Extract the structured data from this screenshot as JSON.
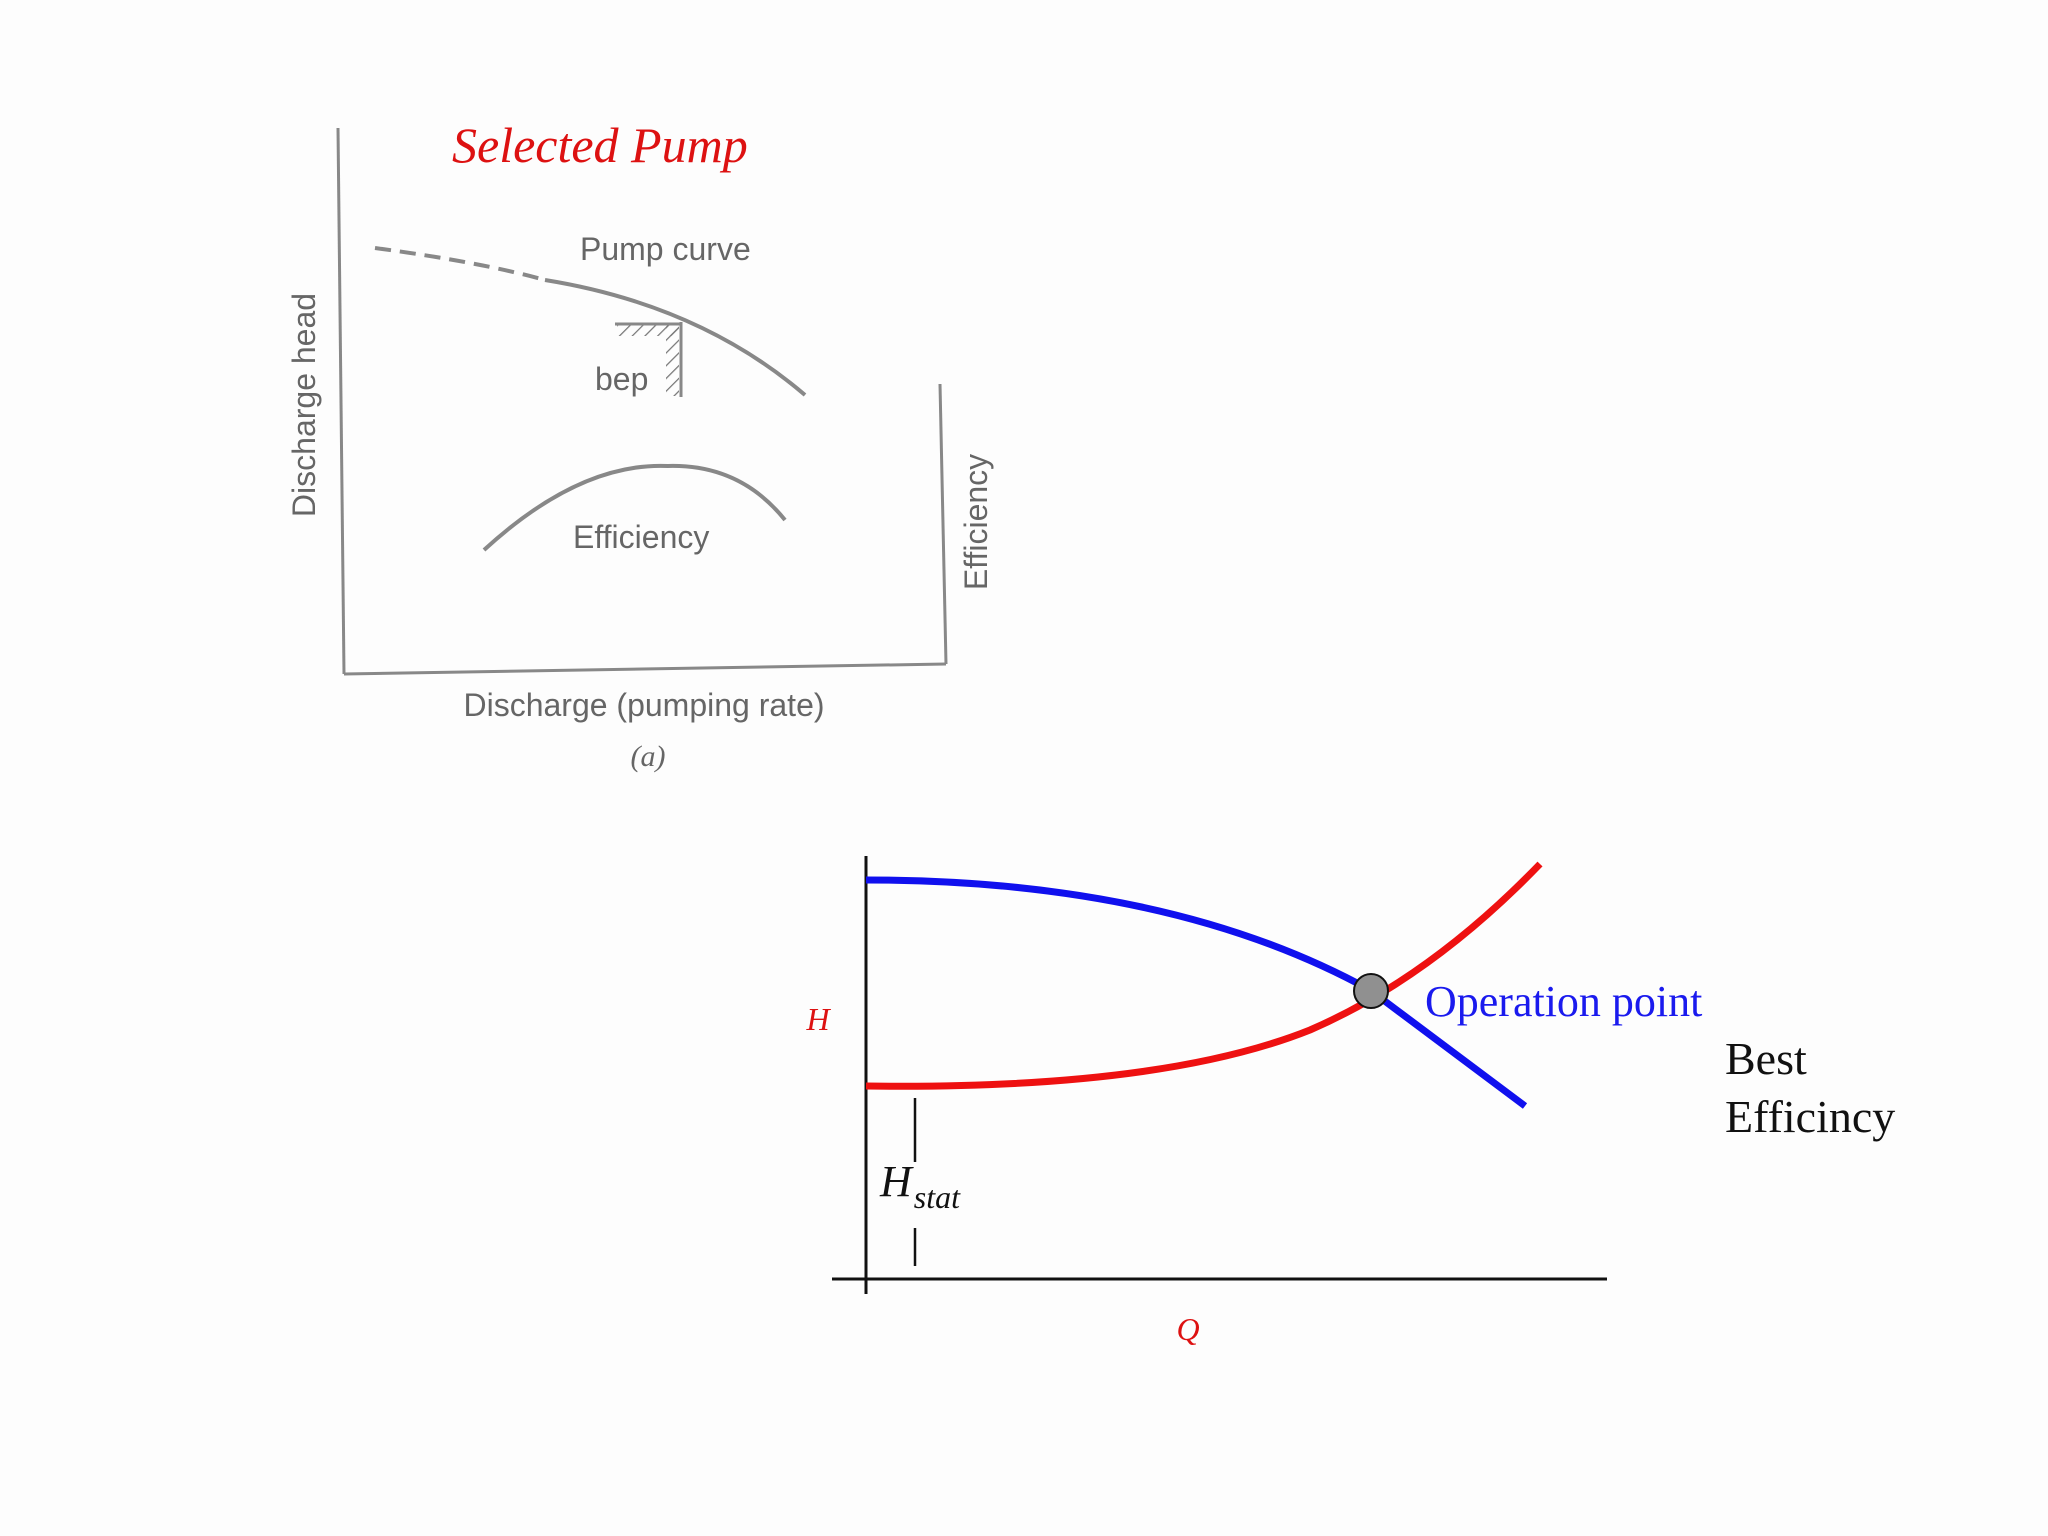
{
  "title": {
    "text": "Selected Pump",
    "color": "#dd1111"
  },
  "figure_a": {
    "labels": {
      "pump_curve": "Pump curve",
      "bep": "bep",
      "efficiency_curve": "Efficiency",
      "y_left": "Discharge head",
      "y_right": "Efficiency",
      "x": "Discharge (pumping rate)",
      "caption": "(a)"
    },
    "line_color": "#888888",
    "text_color": "#666666"
  },
  "figure_b": {
    "labels": {
      "y": "H",
      "x": "Q",
      "h_stat_main": "H",
      "h_stat_sub": "stat",
      "operation_point": "Operation point",
      "best_efficiency_line1": "Best",
      "best_efficiency_line2": "Efficincy"
    },
    "colors": {
      "pump_curve": "#1010ee",
      "system_curve": "#ee1111",
      "axis_labels": "#dd1111",
      "operation_point_text": "#1a1aee",
      "operation_point_marker": "#909090"
    }
  }
}
